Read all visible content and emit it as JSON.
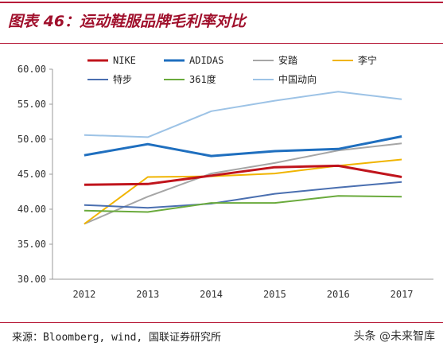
{
  "header": {
    "title": "图表 46：运动鞋服品牌毛利率对比"
  },
  "footer": {
    "source": "来源：Bloomberg, wind, 国联证券研究所",
    "watermark": "头条 @未来智库"
  },
  "chart_data": {
    "type": "line",
    "title": "",
    "xlabel": "",
    "ylabel": "",
    "x": [
      "2012",
      "2013",
      "2014",
      "2015",
      "2016",
      "2017"
    ],
    "ylim": [
      30,
      60
    ],
    "yticks": [
      "30.00",
      "35.00",
      "40.00",
      "45.00",
      "50.00",
      "55.00",
      "60.00"
    ],
    "grid": false,
    "legend_position": "top",
    "series": [
      {
        "name": "NIKE",
        "color": "#c0141c",
        "values": [
          43.5,
          43.6,
          44.8,
          46.0,
          46.2,
          44.6
        ]
      },
      {
        "name": "ADIDAS",
        "color": "#1f6fbf",
        "values": [
          47.7,
          49.3,
          47.6,
          48.3,
          48.6,
          50.4
        ]
      },
      {
        "name": "安踏",
        "color": "#a6a6a6",
        "values": [
          37.9,
          41.8,
          45.1,
          46.6,
          48.4,
          49.4
        ]
      },
      {
        "name": "李宁",
        "color": "#f0b400",
        "values": [
          37.9,
          44.6,
          44.7,
          45.1,
          46.2,
          47.1
        ]
      },
      {
        "name": "特步",
        "color": "#4a6fb0",
        "values": [
          40.6,
          40.2,
          40.8,
          42.2,
          43.1,
          43.9
        ]
      },
      {
        "name": "361度",
        "color": "#6aaa3c",
        "values": [
          39.8,
          39.6,
          40.9,
          40.9,
          41.9,
          41.8
        ]
      },
      {
        "name": "中国动向",
        "color": "#9dc3e6",
        "values": [
          50.6,
          50.3,
          54.0,
          55.5,
          56.8,
          55.7
        ]
      }
    ]
  }
}
